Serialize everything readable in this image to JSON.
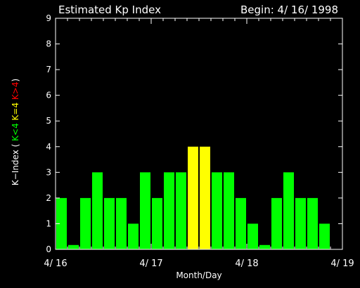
{
  "chart_data": {
    "type": "bar",
    "title": "Estimated Kp Index",
    "subtitle": "Begin: 4/ 16/ 1998",
    "xlabel": "Month/Day",
    "ylabel_parts": [
      {
        "text": "K−Index (",
        "color": "#ffffff"
      },
      {
        "text": "K<4",
        "color": "#00ff00"
      },
      {
        "text": "K=4",
        "color": "#ffff00"
      },
      {
        "text": "K>4",
        "color": "#ff0000"
      },
      {
        "text": ")",
        "color": "#ffffff"
      }
    ],
    "ylim": [
      0,
      9
    ],
    "yticks": [
      "0",
      "1",
      "2",
      "3",
      "4",
      "5",
      "6",
      "7",
      "8",
      "9"
    ],
    "xticks": [
      "4/ 16",
      "4/ 17",
      "4/ 18",
      "4/ 19"
    ],
    "bin_hours": 3,
    "values": [
      2,
      0.17,
      2,
      3,
      2,
      2,
      1,
      3,
      2,
      3,
      3,
      4,
      4,
      3,
      3,
      2,
      1,
      0.17,
      2,
      3,
      2,
      2,
      1
    ],
    "colors": {
      "low": "#00ff00",
      "equal": "#ffff00",
      "high": "#ff0000",
      "frame": "#ffffff",
      "background": "#000000"
    }
  }
}
